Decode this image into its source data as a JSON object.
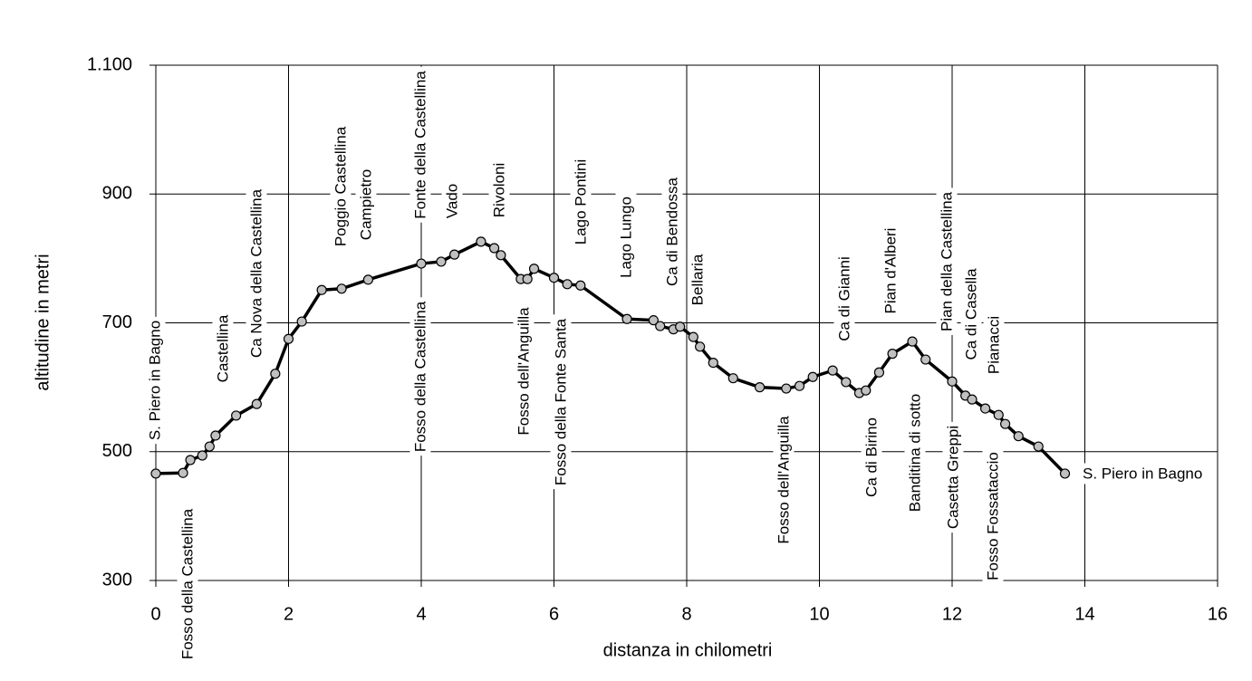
{
  "chart_data": {
    "type": "line",
    "x_label": "distanza in chilometri",
    "y_label": "altitudine  in metri",
    "x": [
      0,
      0.41,
      0.52,
      0.7,
      0.81,
      0.9,
      1.21,
      1.52,
      1.8,
      2.0,
      2.2,
      2.5,
      2.8,
      3.2,
      4.0,
      4.3,
      4.5,
      4.9,
      5.1,
      5.2,
      5.5,
      5.6,
      5.7,
      6.0,
      6.2,
      6.4,
      7.1,
      7.5,
      7.6,
      7.8,
      7.9,
      8.1,
      8.2,
      8.4,
      8.7,
      9.1,
      9.5,
      9.7,
      9.9,
      10.2,
      10.4,
      10.6,
      10.7,
      10.9,
      11.1,
      11.4,
      11.6,
      12.0,
      12.2,
      12.3,
      12.5,
      12.7,
      12.8,
      13.0,
      13.3,
      13.7
    ],
    "values": [
      466,
      467,
      487,
      494,
      508,
      525,
      556,
      574,
      621,
      675,
      702,
      751,
      753,
      767,
      792,
      795,
      806,
      826,
      816,
      805,
      768,
      768,
      784,
      770,
      760,
      758,
      706,
      704,
      695,
      690,
      694,
      678,
      663,
      638,
      614,
      600,
      598,
      602,
      616,
      626,
      608,
      591,
      595,
      623,
      652,
      671,
      643,
      609,
      587,
      581,
      567,
      557,
      543,
      524,
      508,
      466
    ],
    "color": "#000000",
    "marker_color": "#c0c0c0",
    "xlim": [
      0,
      16
    ],
    "xticks": [
      0,
      2,
      4,
      6,
      8,
      10,
      12,
      14,
      16
    ],
    "ylim": [
      300,
      1100
    ],
    "yticks": [
      300,
      500,
      700,
      900,
      {
        "value": 1100,
        "label": "1.100"
      }
    ],
    "grid": true,
    "annotations": [
      "S. Piero in Bagno",
      "Fosso della Castellina",
      "Castellina",
      "Ca Nova della Castellina",
      "Poggio Castellina",
      "Campietro",
      "Fonte della Castellina",
      "Fosso della Castellina",
      "Vado",
      "Rivoloni",
      "Fosso dell'Anguilla",
      "Fosso della Fonte Santa",
      "Lago Pontini",
      "Lago Lungo",
      "Ca di Bendossa",
      "Bellaria",
      "Fosso dell'Anguilla",
      "Ca di Gianni",
      "Ca di Birino",
      "Pian d'Alberi",
      "Banditina di sotto",
      "Pian della Castellina",
      "Casetta Greppi",
      "Ca di Casella",
      "Pianacci",
      "Fosso Fossataccio",
      "S. Piero in Bagno"
    ]
  }
}
